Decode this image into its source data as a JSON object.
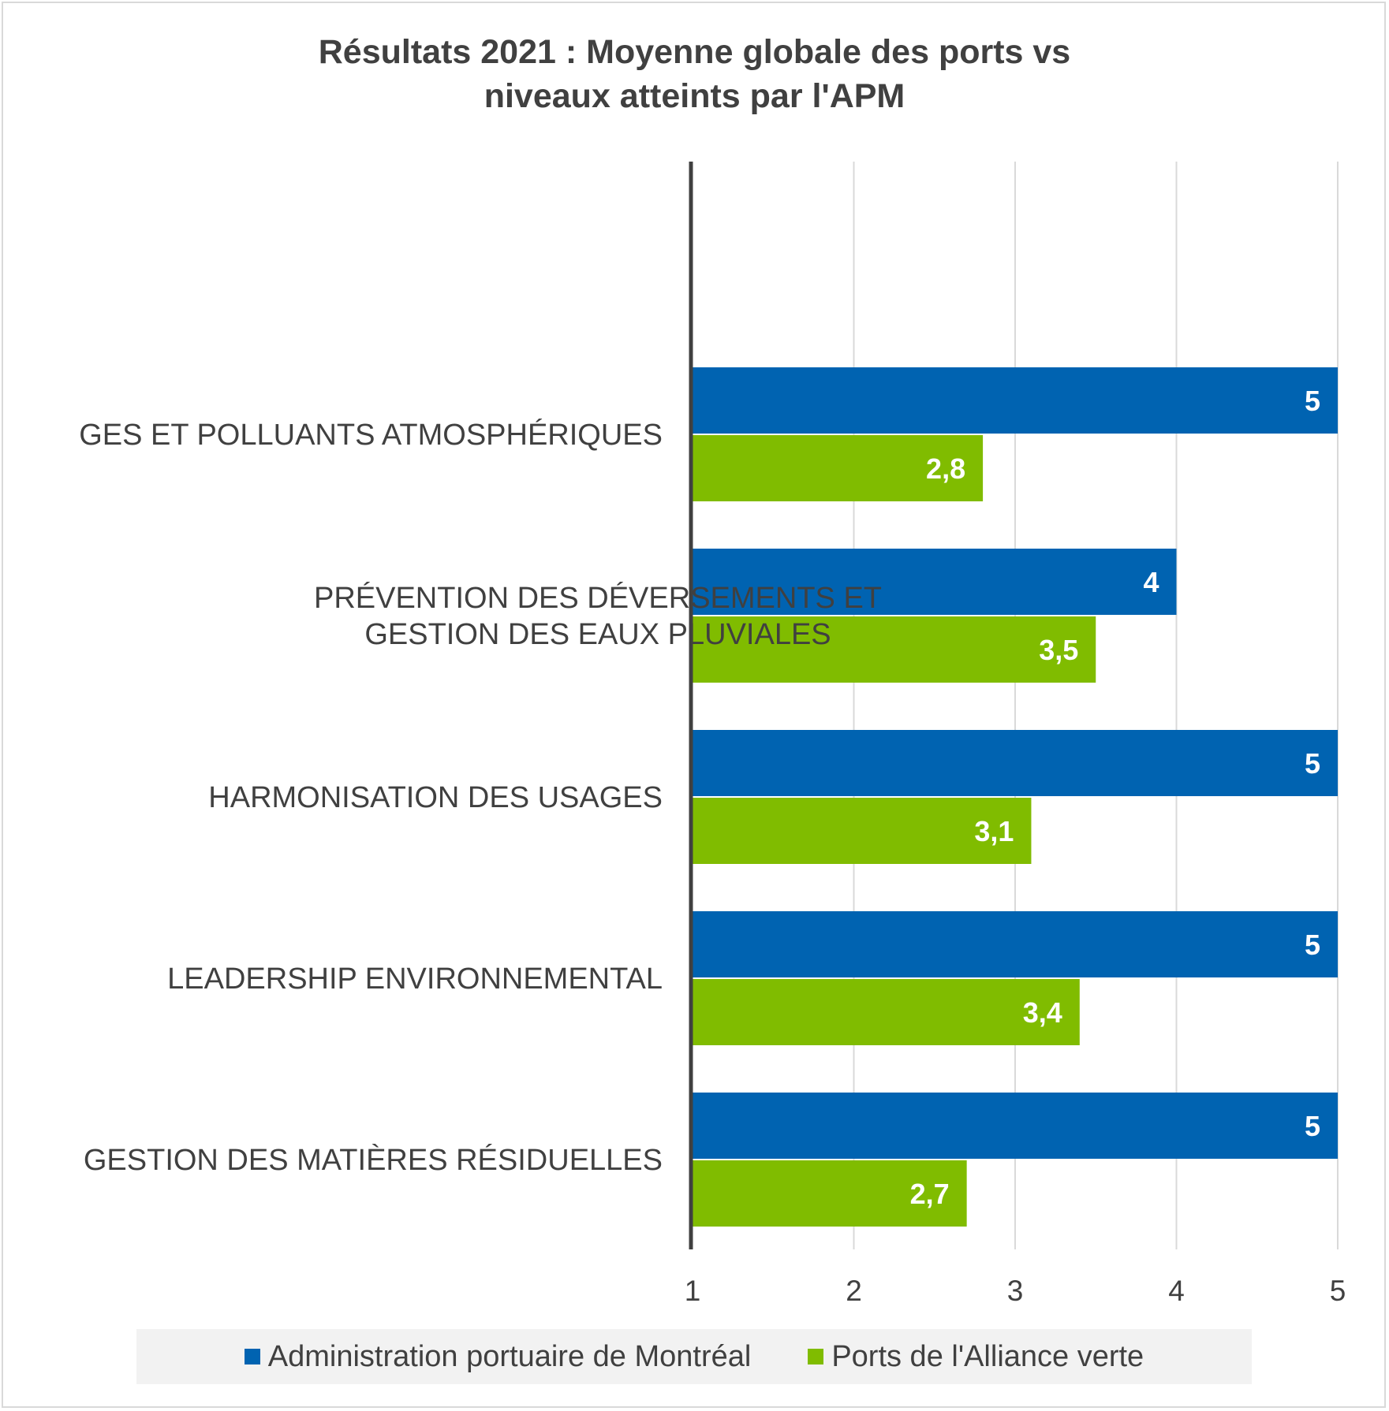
{
  "chart_data": {
    "type": "bar",
    "orientation": "horizontal",
    "title_lines": [
      "Résultats 2021 : Moyenne globale des ports vs",
      "niveaux atteints par l'APM"
    ],
    "categories": [
      [
        "GES ET POLLUANTS ATMOSPHÉRIQUES"
      ],
      [
        "PRÉVENTION DES DÉVERSEMENTS ET",
        "GESTION DES EAUX PLUVIALES"
      ],
      [
        "HARMONISATION DES USAGES"
      ],
      [
        "LEADERSHIP ENVIRONNEMENTAL"
      ],
      [
        "GESTION DES MATIÈRES RÉSIDUELLES"
      ]
    ],
    "series": [
      {
        "name": "Administration portuaire de Montréal",
        "color": "#0063b1",
        "values": [
          5,
          4,
          5,
          5,
          5
        ],
        "labels": [
          "5",
          "4",
          "5",
          "5",
          "5"
        ]
      },
      {
        "name": "Ports de l'Alliance verte",
        "color": "#80bc00",
        "values": [
          2.8,
          3.5,
          3.1,
          3.4,
          2.7
        ],
        "labels": [
          "2,8",
          "3,5",
          "3,1",
          "3,4",
          "2,7"
        ]
      }
    ],
    "xlim": [
      1,
      5
    ],
    "ticks": [
      1,
      2,
      3,
      4,
      5
    ],
    "tick_labels": [
      "1",
      "2",
      "3",
      "4",
      "5"
    ],
    "grid": true,
    "legend_position": "bottom"
  }
}
